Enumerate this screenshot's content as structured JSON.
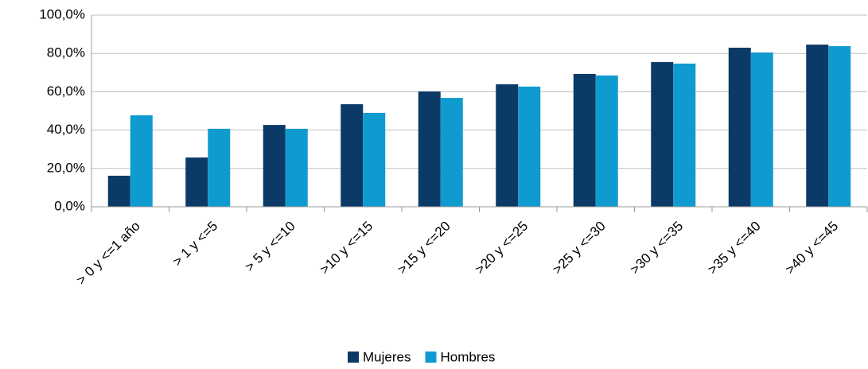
{
  "chart_data": {
    "type": "bar",
    "categories": [
      "> 0 y <=1 año",
      "> 1 y <=5",
      "> 5 y <=10",
      ">10 y <=15",
      ">15 y <=20",
      ">20 y <=25",
      ">25 y <=30",
      ">30 y <=35",
      ">35 y <=40",
      ">40 y <=45"
    ],
    "series": [
      {
        "name": "Mujeres",
        "color": "#0b3a66",
        "values": [
          16.2,
          25.7,
          42.7,
          53.5,
          60.2,
          63.9,
          69.3,
          75.5,
          83.0,
          84.6
        ]
      },
      {
        "name": "Hombres",
        "color": "#0f9bd0",
        "values": [
          47.7,
          40.7,
          40.7,
          49.0,
          56.8,
          62.7,
          68.5,
          74.7,
          80.5,
          83.8
        ]
      }
    ],
    "ylim": [
      0,
      100
    ],
    "yticks": [
      {
        "value": 0,
        "label": "0,0%"
      },
      {
        "value": 20,
        "label": "20,0%"
      },
      {
        "value": 40,
        "label": "40,0%"
      },
      {
        "value": 60,
        "label": "60,0%"
      },
      {
        "value": 80,
        "label": "80,0%"
      },
      {
        "value": 100,
        "label": "100,0%"
      }
    ],
    "grid": true,
    "legend": "bottom"
  }
}
